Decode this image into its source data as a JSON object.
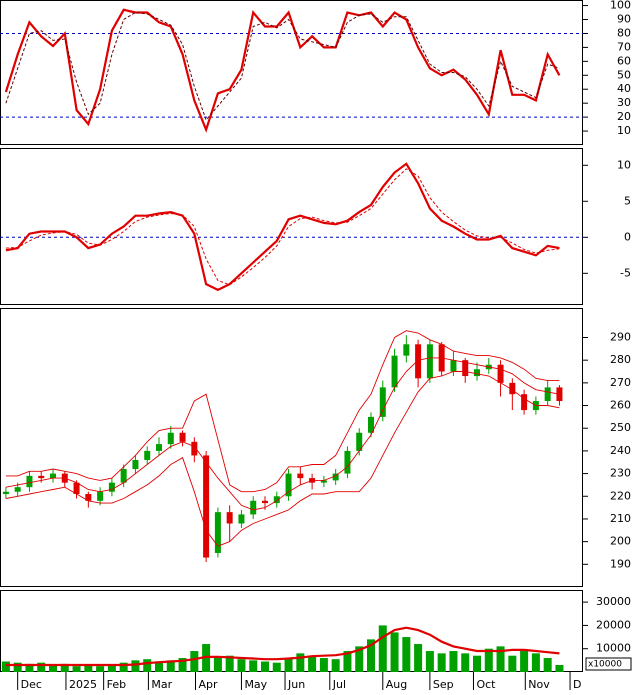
{
  "chart_data": [
    {
      "type": "line",
      "xlim": [
        -0.5,
        49
      ],
      "ylim": [
        0,
        104
      ],
      "yticks": [
        10,
        20,
        30,
        40,
        50,
        60,
        70,
        80,
        90,
        100
      ],
      "hlines": [
        80,
        20
      ],
      "hline_color": "#0000c0",
      "series": [
        {
          "color": "#e00000",
          "style": "bold",
          "values": [
            38,
            65,
            88,
            78,
            71,
            80,
            25,
            15,
            40,
            82,
            97,
            95,
            95,
            88,
            85,
            65,
            32,
            11,
            37,
            40,
            54,
            95,
            85,
            85,
            95,
            70,
            78,
            70,
            70,
            95,
            93,
            95,
            85,
            95,
            90,
            70,
            55,
            50,
            54,
            47,
            36,
            22,
            68,
            36,
            36,
            32,
            65,
            50
          ]
        },
        {
          "color": "#600000",
          "style": "dashed",
          "values": [
            30,
            55,
            80,
            82,
            75,
            76,
            45,
            22,
            30,
            65,
            90,
            95,
            94,
            90,
            86,
            72,
            42,
            18,
            28,
            38,
            48,
            85,
            88,
            84,
            90,
            76,
            74,
            72,
            70,
            88,
            93,
            94,
            88,
            92,
            92,
            75,
            58,
            52,
            52,
            49,
            40,
            28,
            60,
            42,
            38,
            34,
            58,
            55
          ]
        }
      ]
    },
    {
      "type": "line",
      "xlim": [
        -0.5,
        49
      ],
      "ylim": [
        -9.4,
        12.4
      ],
      "yticks": [
        10,
        5,
        0,
        -5
      ],
      "hlines": [
        0
      ],
      "hline_color": "#0000c0",
      "series": [
        {
          "color": "#e00000",
          "style": "bold",
          "values": [
            -1.8,
            -1.5,
            0.5,
            0.8,
            0.8,
            0.8,
            0,
            -1.5,
            -1.0,
            0.5,
            1.5,
            3.0,
            3.0,
            3.3,
            3.5,
            3.0,
            0.5,
            -6.5,
            -7.3,
            -6.5,
            -5,
            -3.5,
            -2,
            -0.5,
            2.5,
            3.0,
            2.5,
            2.0,
            1.8,
            2.3,
            3.5,
            4.5,
            7,
            9,
            10.2,
            7.5,
            4.0,
            2.3,
            1.5,
            0.5,
            -0.3,
            -0.3,
            0.2,
            -1.5,
            -2.0,
            -2.5,
            -1.2,
            -1.5
          ]
        },
        {
          "color": "#e00000",
          "style": "dashed",
          "values": [
            -1.5,
            -1.4,
            -0.5,
            0.3,
            0.6,
            0.8,
            0.4,
            -0.8,
            -1.1,
            -0.3,
            0.8,
            2.2,
            2.8,
            3.1,
            3.3,
            3.1,
            1.5,
            -3.0,
            -6.0,
            -6.6,
            -5.5,
            -4.2,
            -2.8,
            -1.2,
            1.5,
            2.6,
            2.8,
            2.3,
            2.0,
            2.1,
            3.0,
            4.0,
            6.0,
            8.0,
            9.5,
            8.5,
            5.5,
            3.5,
            2.2,
            1.0,
            0.2,
            -0.1,
            0,
            -0.8,
            -1.7,
            -2.2,
            -1.8,
            -1.6
          ]
        }
      ]
    },
    {
      "type": "candlestick",
      "xlim": [
        -0.5,
        49
      ],
      "ylim": [
        180,
        303
      ],
      "yticks": [
        190,
        200,
        210,
        220,
        230,
        240,
        250,
        260,
        270,
        280,
        290
      ],
      "up_color": "#00a000",
      "down_color": "#e00000",
      "open": [
        221,
        222,
        224,
        229,
        228,
        230,
        226,
        221,
        218,
        222,
        226,
        232,
        236,
        240,
        243,
        248,
        244,
        238,
        195,
        213,
        208,
        212,
        218,
        217,
        220,
        230,
        228,
        226,
        227,
        230,
        240,
        248,
        255,
        268,
        282,
        287,
        272,
        287,
        275,
        280,
        273,
        276,
        278,
        270,
        265,
        258,
        262,
        268
      ],
      "high": [
        224,
        226,
        231,
        231,
        232,
        231,
        227,
        222,
        224,
        228,
        234,
        238,
        242,
        246,
        251,
        249,
        246,
        240,
        215,
        216,
        214,
        220,
        220,
        222,
        232,
        233,
        230,
        229,
        232,
        242,
        250,
        257,
        271,
        285,
        291,
        289,
        289,
        288,
        284,
        281,
        279,
        281,
        280,
        272,
        267,
        264,
        271,
        269
      ],
      "low": [
        219,
        220,
        222,
        226,
        226,
        224,
        219,
        215,
        216,
        220,
        224,
        230,
        234,
        238,
        241,
        242,
        235,
        191,
        193,
        200,
        206,
        210,
        214,
        215,
        218,
        225,
        223,
        224,
        225,
        228,
        238,
        246,
        253,
        266,
        279,
        268,
        270,
        273,
        273,
        270,
        271,
        274,
        264,
        258,
        256,
        256,
        260,
        260
      ],
      "close": [
        222,
        224,
        229,
        228,
        230,
        226,
        221,
        218,
        222,
        226,
        232,
        236,
        240,
        243,
        248,
        244,
        238,
        193,
        213,
        208,
        212,
        218,
        217,
        220,
        230,
        228,
        226,
        227,
        230,
        240,
        248,
        255,
        268,
        282,
        287,
        272,
        287,
        275,
        280,
        273,
        276,
        278,
        270,
        265,
        258,
        262,
        268,
        262
      ],
      "series": [
        {
          "color": "#e00000",
          "values": [
            229,
            229,
            231,
            231,
            232,
            231,
            230,
            228,
            227,
            228,
            233,
            238,
            244,
            249,
            250,
            250,
            262,
            265,
            245,
            225,
            222,
            222,
            223,
            226,
            233,
            233,
            234,
            234,
            238,
            248,
            258,
            265,
            278,
            290,
            293,
            292,
            289,
            287,
            284,
            283,
            282,
            282,
            281,
            279,
            276,
            272,
            271,
            271
          ]
        },
        {
          "color": "#e00000",
          "values": [
            224,
            225,
            226,
            227,
            228,
            228,
            226,
            223,
            222,
            223,
            226,
            230,
            234,
            238,
            242,
            244,
            242,
            235,
            228,
            222,
            216,
            214,
            215,
            218,
            222,
            225,
            227,
            227,
            229,
            233,
            240,
            247,
            258,
            268,
            275,
            280,
            281,
            281,
            280,
            279,
            278,
            277,
            276,
            274,
            270,
            267,
            266,
            265
          ]
        },
        {
          "color": "#e00000",
          "values": [
            219,
            220,
            221,
            222,
            223,
            224,
            221,
            218,
            217,
            217,
            219,
            222,
            225,
            229,
            234,
            237,
            222,
            205,
            198,
            200,
            205,
            208,
            210,
            212,
            214,
            218,
            221,
            221,
            222,
            222,
            222,
            228,
            238,
            248,
            257,
            266,
            272,
            273,
            275,
            275,
            274,
            273,
            270,
            267,
            263,
            260,
            260,
            259
          ]
        }
      ]
    },
    {
      "type": "bar",
      "xlim": [
        -0.5,
        49
      ],
      "ylim": [
        0,
        35200
      ],
      "yticks": [
        10000,
        20000,
        30000
      ],
      "unit_label": "x10000",
      "xticks": [
        {
          "value": 1.0,
          "label": "Dec"
        },
        {
          "value": 5.1,
          "label": "2025"
        },
        {
          "value": 8.3,
          "label": "Feb"
        },
        {
          "value": 12.1,
          "label": "Mar"
        },
        {
          "value": 16.1,
          "label": "Apr"
        },
        {
          "value": 20.0,
          "label": "May"
        },
        {
          "value": 23.7,
          "label": "Jun"
        },
        {
          "value": 27.5,
          "label": "Jul"
        },
        {
          "value": 32.0,
          "label": "Aug"
        },
        {
          "value": 36.0,
          "label": "Sep"
        },
        {
          "value": 39.7,
          "label": "Oct"
        },
        {
          "value": 44.1,
          "label": "Nov"
        },
        {
          "value": 47.9,
          "label": "D"
        }
      ],
      "series": [
        {
          "type": "bar",
          "color": "#00a000",
          "values": [
            4500,
            4000,
            3500,
            4000,
            3000,
            3500,
            2500,
            3000,
            2500,
            3000,
            4000,
            5000,
            5500,
            4500,
            5000,
            6000,
            9000,
            12000,
            6000,
            7000,
            5500,
            5000,
            4500,
            4000,
            6000,
            8000,
            7000,
            6000,
            5500,
            9000,
            11000,
            14000,
            20000,
            17000,
            15000,
            12000,
            9000,
            8000,
            9000,
            8000,
            7000,
            10000,
            11000,
            7000,
            9000,
            8000,
            6000,
            3000
          ]
        },
        {
          "type": "line",
          "color": "#e00000",
          "values": [
            3000,
            3000,
            3000,
            3000,
            3000,
            3000,
            3000,
            3000,
            3000,
            3000,
            3000,
            3200,
            3800,
            4200,
            4500,
            4800,
            5500,
            6500,
            6500,
            6300,
            6000,
            5800,
            5500,
            5500,
            5800,
            6200,
            6800,
            7000,
            7200,
            8000,
            9500,
            11500,
            15000,
            18000,
            19000,
            18000,
            16000,
            13000,
            11000,
            10000,
            9000,
            9000,
            9000,
            9500,
            9500,
            9000,
            8500,
            8000
          ]
        }
      ]
    }
  ]
}
